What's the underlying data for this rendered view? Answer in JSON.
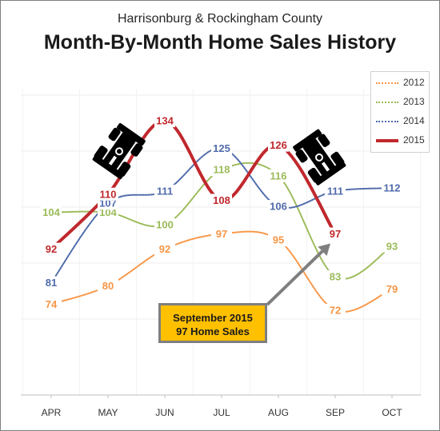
{
  "chart_data": {
    "type": "line",
    "subtitle": "Harrisonburg & Rockingham County",
    "title": "Month-By-Month Home Sales History",
    "categories": [
      "APR",
      "MAY",
      "JUN",
      "JUL",
      "AUG",
      "SEP",
      "OCT"
    ],
    "ylim": [
      55,
      145
    ],
    "grid": true,
    "legend_position": "top-right",
    "series": [
      {
        "name": "2012",
        "color": "#f79646",
        "values": [
          74,
          80,
          92,
          97,
          95,
          72,
          79
        ]
      },
      {
        "name": "2013",
        "color": "#9bbb59",
        "values": [
          104,
          104,
          100,
          118,
          116,
          83,
          93
        ]
      },
      {
        "name": "2014",
        "color": "#4f6bab",
        "values": [
          81,
          107,
          111,
          125,
          106,
          111,
          112
        ]
      },
      {
        "name": "2015",
        "color": "#c0282d",
        "values": [
          92,
          110,
          134,
          108,
          126,
          97,
          null
        ]
      }
    ],
    "annotation": {
      "line1": "September 2015",
      "line2": "97 Home Sales",
      "target_category": "SEP",
      "target_value": 97,
      "fill": "#ffc000"
    },
    "icons": [
      "race-car-icon",
      "race-car-icon"
    ]
  }
}
